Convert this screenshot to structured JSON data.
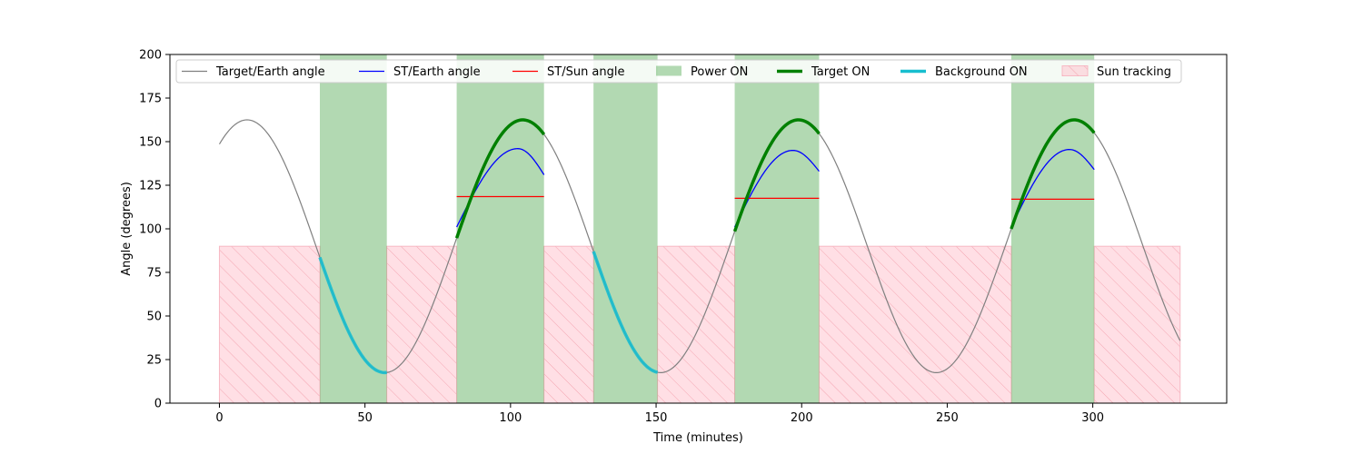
{
  "chart_data": {
    "type": "line",
    "xlabel": "Time (minutes)",
    "ylabel": "Angle (degrees)",
    "xlim": [
      -17,
      346
    ],
    "ylim": [
      0,
      200
    ],
    "xticks": [
      0,
      50,
      100,
      150,
      200,
      250,
      300
    ],
    "yticks": [
      0,
      25,
      50,
      75,
      100,
      125,
      150,
      175,
      200
    ],
    "grid": false,
    "legend_position": "top",
    "colors": {
      "target_earth": "#808080",
      "st_earth": "#0000ff",
      "st_sun": "#ff0000",
      "power_on": "#008000",
      "target_on": "#008000",
      "background_on": "#17becf",
      "sun_tracking": "#ffc0cb"
    },
    "legend": [
      {
        "label": "Target/Earth angle",
        "key": "target_earth",
        "kind": "line"
      },
      {
        "label": "ST/Earth angle",
        "key": "st_earth",
        "kind": "line"
      },
      {
        "label": "ST/Sun angle",
        "key": "st_sun",
        "kind": "line"
      },
      {
        "label": "Power ON",
        "key": "power_on",
        "kind": "patch"
      },
      {
        "label": "Target ON",
        "key": "target_on",
        "kind": "thickline"
      },
      {
        "label": "Background ON",
        "key": "background_on",
        "kind": "thickline"
      },
      {
        "label": "Sun tracking",
        "key": "sun_tracking",
        "kind": "hatch"
      }
    ],
    "target_earth_model": {
      "mean": 90,
      "amplitude": 72.5,
      "period_min": 94.7,
      "peak_time_min": 9.5,
      "t_start": 0,
      "t_end": 330
    },
    "power_on_intervals": [
      [
        34.5,
        57.5
      ],
      [
        81.5,
        111.5
      ],
      [
        128.5,
        150.5
      ],
      [
        177,
        206
      ],
      [
        272,
        300.5
      ]
    ],
    "sun_tracking_intervals": [
      [
        0,
        34.5
      ],
      [
        57.5,
        81.5
      ],
      [
        111.5,
        128.5
      ],
      [
        150.5,
        177
      ],
      [
        206,
        272
      ],
      [
        300.5,
        330
      ]
    ],
    "sun_tracking_level": 90,
    "target_on_intervals": [
      [
        81.5,
        111.5
      ],
      [
        177,
        206
      ],
      [
        272,
        300.5
      ]
    ],
    "background_on_intervals": [
      [
        34.5,
        57.5
      ],
      [
        128.5,
        150.5
      ]
    ],
    "st_earth_segments": [
      {
        "t_start": 81.5,
        "t_end": 111.5,
        "peak_time": 102.5,
        "peak": 146,
        "start_value": 101,
        "end_value": 131
      },
      {
        "t_start": 177,
        "t_end": 206,
        "peak_time": 197,
        "peak": 145,
        "start_value": 101,
        "end_value": 133
      },
      {
        "t_start": 272,
        "t_end": 300.5,
        "peak_time": 292,
        "peak": 145.5,
        "start_value": 101,
        "end_value": 134
      }
    ],
    "st_sun_segments": [
      {
        "t_start": 81.5,
        "t_end": 111.5,
        "value": 118.5
      },
      {
        "t_start": 177,
        "t_end": 206,
        "value": 117.5
      },
      {
        "t_start": 272,
        "t_end": 300.5,
        "value": 117
      }
    ]
  }
}
